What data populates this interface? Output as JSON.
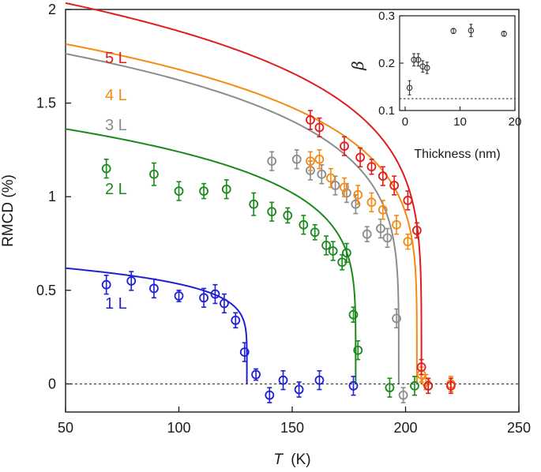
{
  "chart_data": [
    {
      "type": "scatter",
      "title": "",
      "xlabel_var": "T",
      "xlabel_unit": "(K)",
      "ylabel": "RMCD (%)",
      "xlim": [
        50,
        250
      ],
      "ylim": [
        -0.15,
        2.0
      ],
      "xticks": [
        50,
        100,
        150,
        200,
        250
      ],
      "yticks": [
        0,
        0.5,
        1,
        1.5,
        2
      ],
      "xtick_labels": [
        "50",
        "100",
        "150",
        "200",
        "250"
      ],
      "ytick_labels": [
        "0",
        "0.5",
        "1",
        "1.5",
        "2"
      ],
      "reference_line_y": 0,
      "series": [
        {
          "name": "1 L",
          "color": "#1f1fd6",
          "tc": 130,
          "amplitude": 0.665,
          "beta": 0.15,
          "points": [
            {
              "x": 68,
              "y": 0.53,
              "err": 0.05
            },
            {
              "x": 79,
              "y": 0.55,
              "err": 0.05
            },
            {
              "x": 89,
              "y": 0.51,
              "err": 0.05
            },
            {
              "x": 100,
              "y": 0.47,
              "err": 0.03
            },
            {
              "x": 111,
              "y": 0.46,
              "err": 0.05
            },
            {
              "x": 116,
              "y": 0.48,
              "err": 0.05
            },
            {
              "x": 120,
              "y": 0.43,
              "err": 0.05
            },
            {
              "x": 125,
              "y": 0.34,
              "err": 0.04
            },
            {
              "x": 129,
              "y": 0.17,
              "err": 0.05
            },
            {
              "x": 134,
              "y": 0.05,
              "err": 0.03
            },
            {
              "x": 140,
              "y": -0.06,
              "err": 0.04
            },
            {
              "x": 146,
              "y": 0.02,
              "err": 0.05
            },
            {
              "x": 153,
              "y": -0.03,
              "err": 0.04
            },
            {
              "x": 162,
              "y": 0.02,
              "err": 0.05
            },
            {
              "x": 177,
              "y": -0.01,
              "err": 0.05
            }
          ]
        },
        {
          "name": "2 L",
          "color": "#1a8a1a",
          "tc": 178,
          "amplitude": 1.45,
          "beta": 0.19,
          "points": [
            {
              "x": 68,
              "y": 1.15,
              "err": 0.05
            },
            {
              "x": 89,
              "y": 1.12,
              "err": 0.06
            },
            {
              "x": 100,
              "y": 1.03,
              "err": 0.05
            },
            {
              "x": 111,
              "y": 1.03,
              "err": 0.04
            },
            {
              "x": 121,
              "y": 1.04,
              "err": 0.05
            },
            {
              "x": 133,
              "y": 0.96,
              "err": 0.06
            },
            {
              "x": 141,
              "y": 0.92,
              "err": 0.05
            },
            {
              "x": 148,
              "y": 0.9,
              "err": 0.04
            },
            {
              "x": 155,
              "y": 0.85,
              "err": 0.05
            },
            {
              "x": 160,
              "y": 0.81,
              "err": 0.04
            },
            {
              "x": 165,
              "y": 0.74,
              "err": 0.05
            },
            {
              "x": 168,
              "y": 0.71,
              "err": 0.05
            },
            {
              "x": 172,
              "y": 0.65,
              "err": 0.04
            },
            {
              "x": 174,
              "y": 0.7,
              "err": 0.05
            },
            {
              "x": 177,
              "y": 0.37,
              "err": 0.04
            },
            {
              "x": 179,
              "y": 0.18,
              "err": 0.05
            },
            {
              "x": 193,
              "y": -0.02,
              "err": 0.05
            },
            {
              "x": 204,
              "y": -0.01,
              "err": 0.05
            }
          ]
        },
        {
          "name": "3 L",
          "color": "#8c8c8c",
          "tc": 197,
          "amplitude": 1.87,
          "beta": 0.2,
          "points": [
            {
              "x": 141,
              "y": 1.19,
              "err": 0.05
            },
            {
              "x": 152,
              "y": 1.2,
              "err": 0.05
            },
            {
              "x": 158,
              "y": 1.14,
              "err": 0.05
            },
            {
              "x": 163,
              "y": 1.12,
              "err": 0.05
            },
            {
              "x": 169,
              "y": 1.06,
              "err": 0.05
            },
            {
              "x": 174,
              "y": 1.02,
              "err": 0.05
            },
            {
              "x": 178,
              "y": 0.96,
              "err": 0.05
            },
            {
              "x": 183,
              "y": 0.8,
              "err": 0.04
            },
            {
              "x": 189,
              "y": 0.83,
              "err": 0.05
            },
            {
              "x": 192,
              "y": 0.78,
              "err": 0.05
            },
            {
              "x": 196,
              "y": 0.35,
              "err": 0.05
            },
            {
              "x": 199,
              "y": -0.06,
              "err": 0.04
            },
            {
              "x": 210,
              "y": -0.01,
              "err": 0.04
            }
          ]
        },
        {
          "name": "4 L",
          "color": "#f58a12",
          "tc": 205,
          "amplitude": 1.92,
          "beta": 0.2,
          "points": [
            {
              "x": 158,
              "y": 1.19,
              "err": 0.05
            },
            {
              "x": 162,
              "y": 1.2,
              "err": 0.05
            },
            {
              "x": 167,
              "y": 1.1,
              "err": 0.05
            },
            {
              "x": 173,
              "y": 1.05,
              "err": 0.05
            },
            {
              "x": 179,
              "y": 1.01,
              "err": 0.05
            },
            {
              "x": 185,
              "y": 0.97,
              "err": 0.05
            },
            {
              "x": 190,
              "y": 0.93,
              "err": 0.05
            },
            {
              "x": 196,
              "y": 0.85,
              "err": 0.05
            },
            {
              "x": 201,
              "y": 0.76,
              "err": 0.04
            },
            {
              "x": 207,
              "y": 0.05,
              "err": 0.04
            },
            {
              "x": 209,
              "y": 0.01,
              "err": 0.04
            },
            {
              "x": 220,
              "y": 0.0,
              "err": 0.04
            }
          ]
        },
        {
          "name": "5 L",
          "color": "#e01d1d",
          "tc": 207,
          "amplitude": 2.15,
          "beta": 0.2,
          "points": [
            {
              "x": 158,
              "y": 1.41,
              "err": 0.05
            },
            {
              "x": 162,
              "y": 1.37,
              "err": 0.05
            },
            {
              "x": 173,
              "y": 1.27,
              "err": 0.05
            },
            {
              "x": 180,
              "y": 1.21,
              "err": 0.05
            },
            {
              "x": 185,
              "y": 1.16,
              "err": 0.04
            },
            {
              "x": 190,
              "y": 1.11,
              "err": 0.05
            },
            {
              "x": 195,
              "y": 1.06,
              "err": 0.05
            },
            {
              "x": 201,
              "y": 0.98,
              "err": 0.05
            },
            {
              "x": 205,
              "y": 0.82,
              "err": 0.04
            },
            {
              "x": 207,
              "y": 0.09,
              "err": 0.04
            },
            {
              "x": 210,
              "y": -0.01,
              "err": 0.04
            },
            {
              "x": 220,
              "y": -0.01,
              "err": 0.04
            }
          ]
        }
      ]
    },
    {
      "type": "scatter",
      "title": "",
      "xlabel": "Thickness (nm)",
      "ylabel": "β",
      "xlim": [
        -1,
        20
      ],
      "ylim": [
        0.1,
        0.3
      ],
      "xticks": [
        0,
        10,
        20
      ],
      "yticks": [
        0.1,
        0.2,
        0.3
      ],
      "xtick_labels": [
        "0",
        "10",
        "20"
      ],
      "ytick_labels": [
        "0.1",
        "0.2",
        "0.3"
      ],
      "reference_line_y": 0.125,
      "color": "#333333",
      "points": [
        {
          "x": 0.8,
          "y": 0.148,
          "err": 0.015
        },
        {
          "x": 1.6,
          "y": 0.207,
          "err": 0.013
        },
        {
          "x": 2.4,
          "y": 0.207,
          "err": 0.013
        },
        {
          "x": 3.2,
          "y": 0.193,
          "err": 0.012
        },
        {
          "x": 4.0,
          "y": 0.19,
          "err": 0.012
        },
        {
          "x": 8.8,
          "y": 0.268,
          "err": 0.005
        },
        {
          "x": 12.0,
          "y": 0.269,
          "err": 0.013
        },
        {
          "x": 18.0,
          "y": 0.262,
          "err": 0.005
        }
      ]
    }
  ]
}
